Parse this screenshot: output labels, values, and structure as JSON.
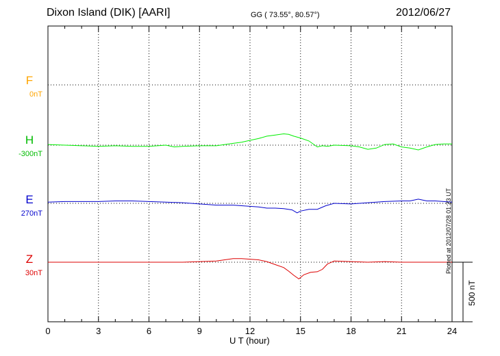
{
  "header": {
    "station": "Dixon Island (DIK)  [AARI]",
    "coords": "GG ( 73.55°,  80.57°)",
    "date": "2012/06/27"
  },
  "components": [
    {
      "name": "F",
      "baseline": "0nT",
      "color": "#ffa500"
    },
    {
      "name": "H",
      "baseline": "-300nT",
      "color": "#00ee00"
    },
    {
      "name": "E",
      "baseline": "270nT",
      "color": "#0000cc"
    },
    {
      "name": "Z",
      "baseline": "30nT",
      "color": "#dd0000"
    }
  ],
  "scale_bar": {
    "label": "500 nT"
  },
  "plotted_note": "Plotted at 2012/07/28 01:23 UT",
  "chart_data": {
    "type": "line",
    "xlabel": "U T (hour)",
    "xlim": [
      0,
      24
    ],
    "xticks": [
      0,
      3,
      6,
      9,
      12,
      15,
      18,
      21,
      24
    ],
    "units": "nT",
    "series": [
      {
        "name": "F",
        "color": "#ffa500",
        "x": [],
        "y": []
      },
      {
        "name": "H",
        "color": "#00ee00",
        "x": [
          0,
          1,
          2,
          3,
          4,
          5,
          6,
          6.5,
          7,
          7.5,
          8,
          9,
          10,
          10.5,
          11,
          11.5,
          12,
          12.5,
          13,
          13.5,
          14,
          14.3,
          14.6,
          15,
          15.5,
          16,
          16.3,
          16.6,
          17,
          18,
          18.5,
          19,
          19.5,
          20,
          20.5,
          21,
          21.5,
          22,
          22.5,
          23,
          23.5,
          24
        ],
        "y": [
          5,
          0,
          -5,
          -10,
          -5,
          -10,
          -10,
          -5,
          0,
          -15,
          -10,
          -5,
          -5,
          5,
          15,
          25,
          40,
          55,
          75,
          85,
          95,
          90,
          75,
          60,
          35,
          -15,
          -5,
          -10,
          0,
          -5,
          -15,
          -35,
          -25,
          5,
          10,
          -15,
          -25,
          -40,
          -15,
          5,
          10,
          10
        ]
      },
      {
        "name": "E",
        "color": "#0000cc",
        "x": [
          0,
          1,
          2,
          3,
          4,
          5,
          6,
          7,
          8,
          9,
          10,
          11,
          12,
          12.5,
          13,
          13.5,
          14,
          14.5,
          14.8,
          15,
          15.5,
          16,
          16.5,
          17,
          18,
          19,
          20,
          21,
          21.5,
          22,
          22.5,
          23,
          23.5,
          24
        ],
        "y": [
          10,
          15,
          15,
          15,
          20,
          20,
          15,
          10,
          5,
          -5,
          -15,
          -15,
          -25,
          -30,
          -40,
          -40,
          -45,
          -55,
          -80,
          -65,
          -50,
          -50,
          -20,
          0,
          -5,
          5,
          15,
          20,
          20,
          35,
          20,
          20,
          15,
          10
        ]
      },
      {
        "name": "Z",
        "color": "#dd0000",
        "x": [
          0,
          2,
          4,
          6,
          8,
          9,
          10,
          10.5,
          11,
          11.5,
          12,
          12.5,
          13,
          13.5,
          14,
          14.3,
          14.6,
          14.9,
          15.2,
          15.6,
          16,
          16.3,
          16.6,
          17,
          18,
          19,
          20,
          21,
          22,
          23,
          24
        ],
        "y": [
          0,
          0,
          0,
          0,
          0,
          5,
          10,
          20,
          30,
          30,
          25,
          20,
          5,
          -20,
          -45,
          -75,
          -110,
          -140,
          -105,
          -85,
          -80,
          -60,
          -15,
          10,
          5,
          0,
          5,
          0,
          0,
          0,
          0
        ]
      }
    ]
  }
}
